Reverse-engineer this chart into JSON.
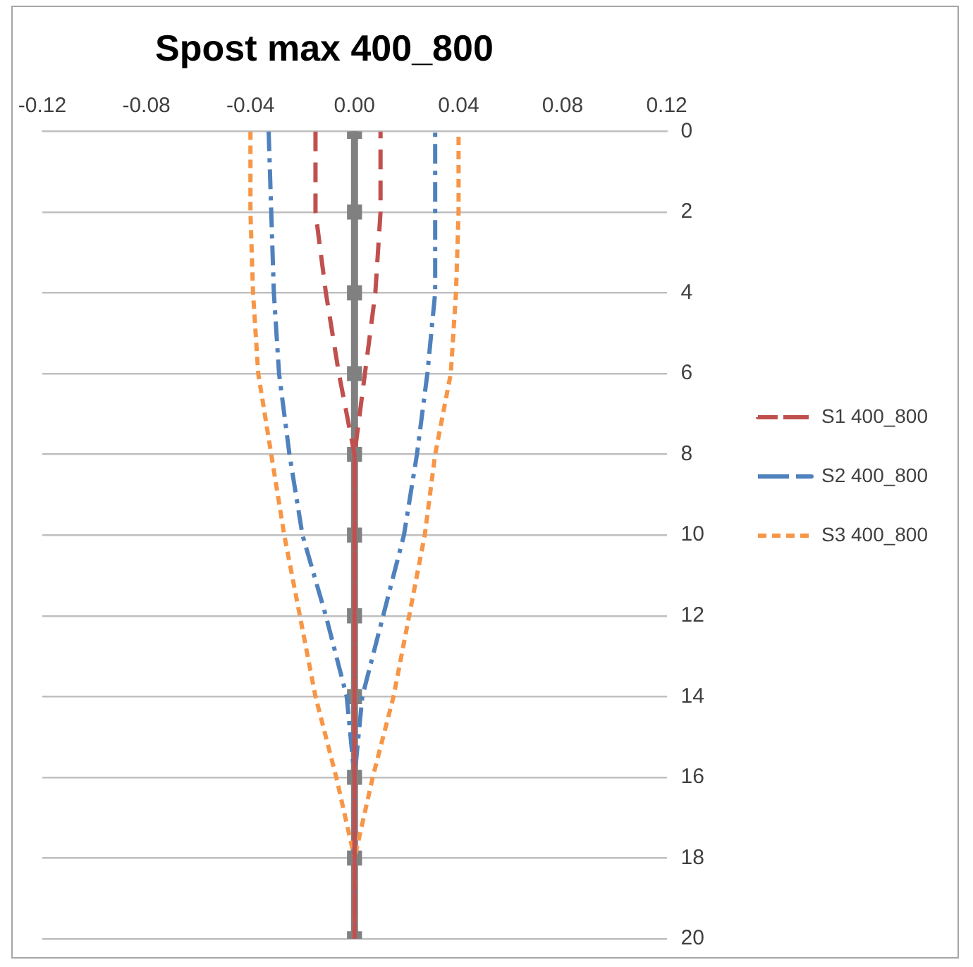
{
  "chart_data": {
    "type": "line",
    "title": "Spost max 400_800",
    "xlim": [
      -0.12,
      0.12
    ],
    "xticks": [
      {
        "value": -0.12,
        "label": "-0.12"
      },
      {
        "value": -0.08,
        "label": "-0.08"
      },
      {
        "value": -0.04,
        "label": "-0.04"
      },
      {
        "value": 0,
        "label": "0.00"
      },
      {
        "value": 0.04,
        "label": "0.04"
      },
      {
        "value": 0.08,
        "label": "0.08"
      },
      {
        "value": 0.12,
        "label": "0.12"
      }
    ],
    "ylim": [
      20,
      0
    ],
    "yticks": [
      0,
      2,
      4,
      6,
      8,
      10,
      12,
      14,
      16,
      18,
      20
    ],
    "grid": "y",
    "legend": "right",
    "marker": "none",
    "series": [
      {
        "name": "S1 400_800",
        "color": "#c0504d",
        "line_style": "dashed",
        "x": [
          -0.015,
          -0.015,
          -0.011,
          -0.006,
          0,
          0,
          0,
          0,
          0,
          0,
          0,
          0,
          0,
          0,
          0,
          0,
          0,
          0.004,
          0.008,
          0.01,
          0.01
        ],
        "values": [
          0,
          2,
          4,
          6,
          8,
          10,
          12,
          14,
          16,
          18,
          20,
          18,
          16,
          14,
          12,
          10,
          8,
          6,
          4,
          2,
          0
        ]
      },
      {
        "name": "S2 400_800",
        "color": "#4f81bd",
        "line_style": "dashdot",
        "x": [
          -0.033,
          -0.032,
          -0.031,
          -0.029,
          -0.025,
          -0.02,
          -0.011,
          -0.003,
          0,
          0,
          0,
          0,
          0,
          0.003,
          0.011,
          0.019,
          0.024,
          0.028,
          0.031,
          0.031,
          0.031
        ],
        "values": [
          0,
          2,
          4,
          6,
          8,
          10,
          12,
          14,
          16,
          18,
          20,
          18,
          16,
          14,
          12,
          10,
          8,
          6,
          4,
          2,
          0
        ]
      },
      {
        "name": "S3 400_800",
        "color": "#f79646",
        "line_style": "dotted",
        "x": [
          -0.04,
          -0.04,
          -0.039,
          -0.037,
          -0.032,
          -0.027,
          -0.021,
          -0.015,
          -0.007,
          0,
          0,
          0,
          0.007,
          0.015,
          0.021,
          0.027,
          0.031,
          0.037,
          0.039,
          0.04,
          0.04
        ],
        "values": [
          0,
          2,
          4,
          6,
          8,
          10,
          12,
          14,
          16,
          18,
          20,
          18,
          16,
          14,
          12,
          10,
          8,
          6,
          4,
          2,
          0
        ]
      },
      {
        "color": "#808080",
        "line_style": "solid",
        "marker": "square",
        "x": [
          0,
          0,
          0,
          0,
          0,
          0,
          0,
          0,
          0,
          0,
          0
        ],
        "values": [
          0,
          2,
          4,
          6,
          8,
          10,
          12,
          14,
          16,
          18,
          20
        ]
      }
    ]
  }
}
